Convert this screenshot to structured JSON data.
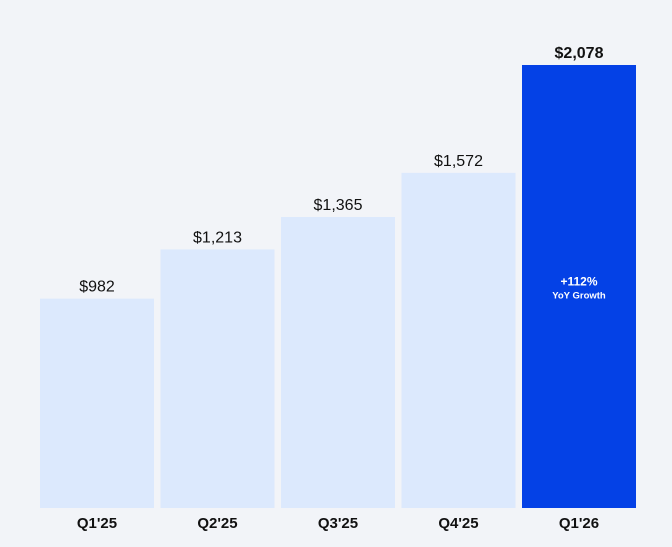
{
  "colors": {
    "background": "#f2f4f8",
    "bar": "#dce9fd",
    "bar_highlight": "#0441e6",
    "text": "#111111",
    "annotation_text": "#ffffff"
  },
  "chart_data": {
    "type": "bar",
    "title": "",
    "xlabel": "",
    "ylabel": "",
    "grid": false,
    "categories": [
      "Q1'25",
      "Q2'25",
      "Q3'25",
      "Q4'25",
      "Q1'26"
    ],
    "values": [
      982,
      1213,
      1365,
      1572,
      2078
    ],
    "data_labels": [
      "$982",
      "$1,213",
      "$1,365",
      "$1,572",
      "$2,078"
    ],
    "ylim": [
      0,
      2078
    ],
    "highlight_index": 4,
    "annotation": {
      "value": "+112%",
      "label": "YoY Growth"
    }
  }
}
